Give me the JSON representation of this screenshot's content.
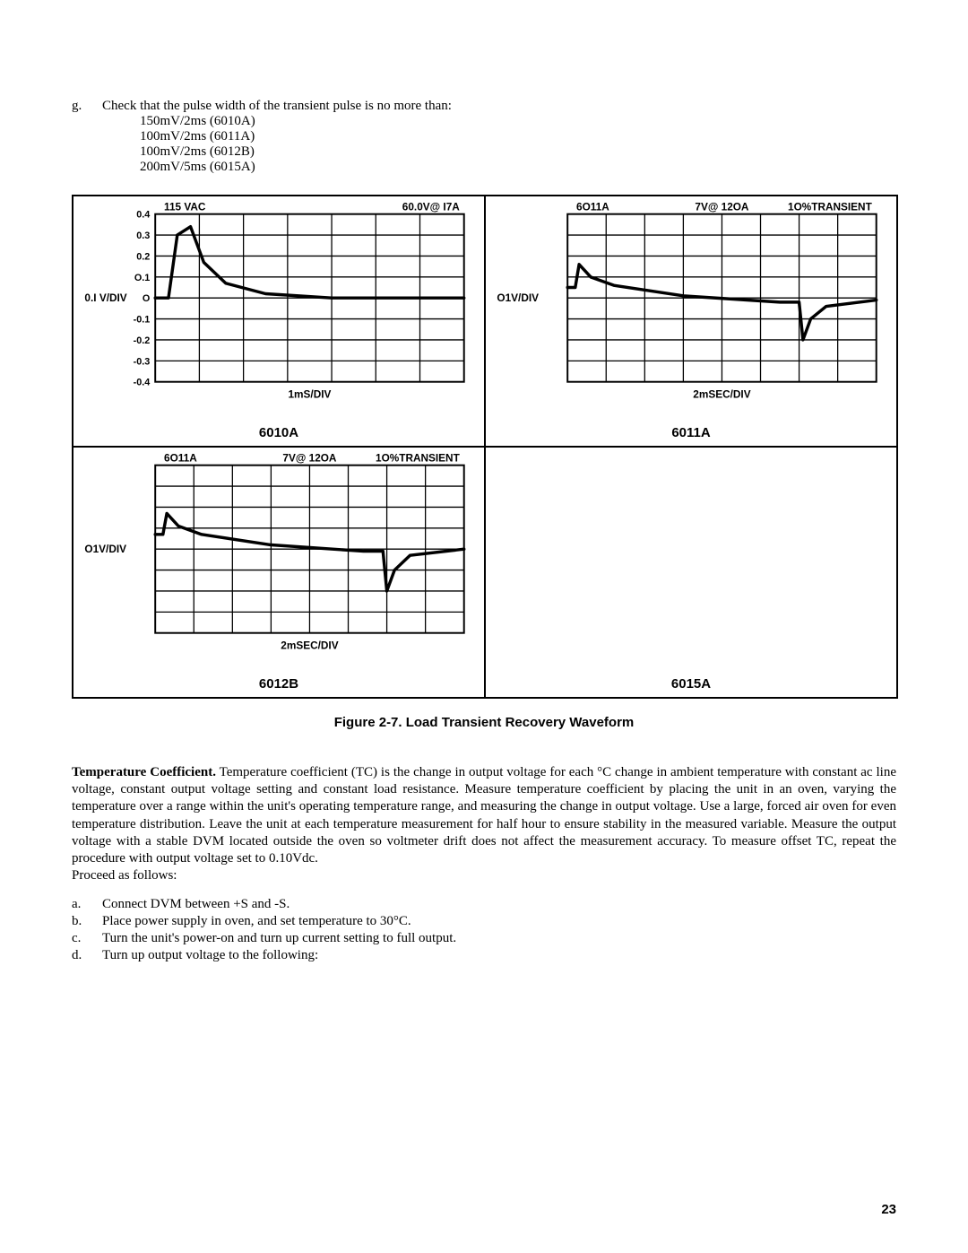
{
  "listG": {
    "marker": "g.",
    "text": "Check that the pulse width of the transient pulse is no more than:",
    "subitems": [
      "150mV/2ms (6010A)",
      "100mV/2ms (6011A)",
      "100mV/2ms (6012B)",
      "200mV/5ms (6015A)"
    ]
  },
  "figure": {
    "caption": "Figure 2-7.  Load Transient Recovery Waveform",
    "panels": [
      {
        "label": "6010A",
        "yaxis_label": "0.I V/DIV",
        "yticks": [
          "0.4",
          "0.3",
          "0.2",
          "O.1",
          "O",
          "-0.1",
          "-0.2",
          "-0.3",
          "-0.4"
        ],
        "top_left": "115 VAC",
        "top_right": "60.0V@ I7A",
        "xaxis_label": "1mS/DIV",
        "xdivs": 7,
        "ydivs": 8,
        "waveform": [
          [
            0,
            4
          ],
          [
            0.3,
            4
          ],
          [
            0.5,
            1.0
          ],
          [
            0.8,
            0.6
          ],
          [
            1.1,
            2.3
          ],
          [
            1.6,
            3.3
          ],
          [
            2.5,
            3.8
          ],
          [
            4.0,
            4.0
          ],
          [
            7.0,
            4.0
          ]
        ]
      },
      {
        "label": "6011A",
        "yaxis_label": "O1V/DIV",
        "top_left": "6O11A",
        "top_center": "7V@ 12OA",
        "top_right": "1O%TRANSIENT",
        "xaxis_label": "2mSEC/DIV",
        "xdivs": 8,
        "ydivs": 8,
        "waveform": [
          [
            0,
            3.5
          ],
          [
            0.2,
            3.5
          ],
          [
            0.3,
            2.4
          ],
          [
            0.6,
            3.0
          ],
          [
            1.2,
            3.4
          ],
          [
            3.0,
            3.9
          ],
          [
            5.5,
            4.2
          ],
          [
            6.0,
            4.2
          ],
          [
            6.1,
            6.0
          ],
          [
            6.3,
            5.0
          ],
          [
            6.7,
            4.4
          ],
          [
            8.0,
            4.1
          ]
        ]
      },
      {
        "label": "6012B",
        "yaxis_label": "O1V/DIV",
        "top_left": "6O11A",
        "top_center": "7V@ 12OA",
        "top_right": "1O%TRANSIENT",
        "xaxis_label": "2mSEC/DIV",
        "xdivs": 8,
        "ydivs": 8,
        "waveform": [
          [
            0,
            3.3
          ],
          [
            0.2,
            3.3
          ],
          [
            0.3,
            2.3
          ],
          [
            0.6,
            2.9
          ],
          [
            1.2,
            3.3
          ],
          [
            3.0,
            3.8
          ],
          [
            5.4,
            4.1
          ],
          [
            5.9,
            4.1
          ],
          [
            6.0,
            6.0
          ],
          [
            6.2,
            5.0
          ],
          [
            6.6,
            4.3
          ],
          [
            8.0,
            4.0
          ]
        ]
      },
      {
        "label": "6015A",
        "blank": true
      }
    ]
  },
  "paragraph": {
    "lead": "Temperature Coefficient.",
    "body": "  Temperature coefficient (TC) is the change in output voltage for each °C change in ambient temperature with constant ac line voltage, constant output voltage setting and constant load resistance. Measure temperature coefficient by placing the unit in an oven, varying the temperature over a range within the unit's operating temperature range, and measuring the change in output voltage. Use a large, forced air oven for even temperature distribution. Leave the unit at each temperature measurement for half hour to ensure stability in the measured variable.  Measure the output voltage with a stable DVM located outside the oven so voltmeter drift does not affect the measurement accuracy. To measure offset TC, repeat the procedure with output voltage set to 0.10Vdc.",
    "tail": "Proceed as follows:"
  },
  "secondList": [
    {
      "marker": "a.",
      "text": "Connect DVM between +S and -S."
    },
    {
      "marker": "b.",
      "text": "Place power supply in oven, and set temperature to 30°C."
    },
    {
      "marker": "c.",
      "text": "Turn the unit's power-on and turn up current setting to full output."
    },
    {
      "marker": "d.",
      "text": "Turn up output voltage to the following:"
    }
  ],
  "pageNumber": "23",
  "style": {
    "grid_color": "#000000",
    "waveform_color": "#000000",
    "waveform_width": 3.5
  }
}
